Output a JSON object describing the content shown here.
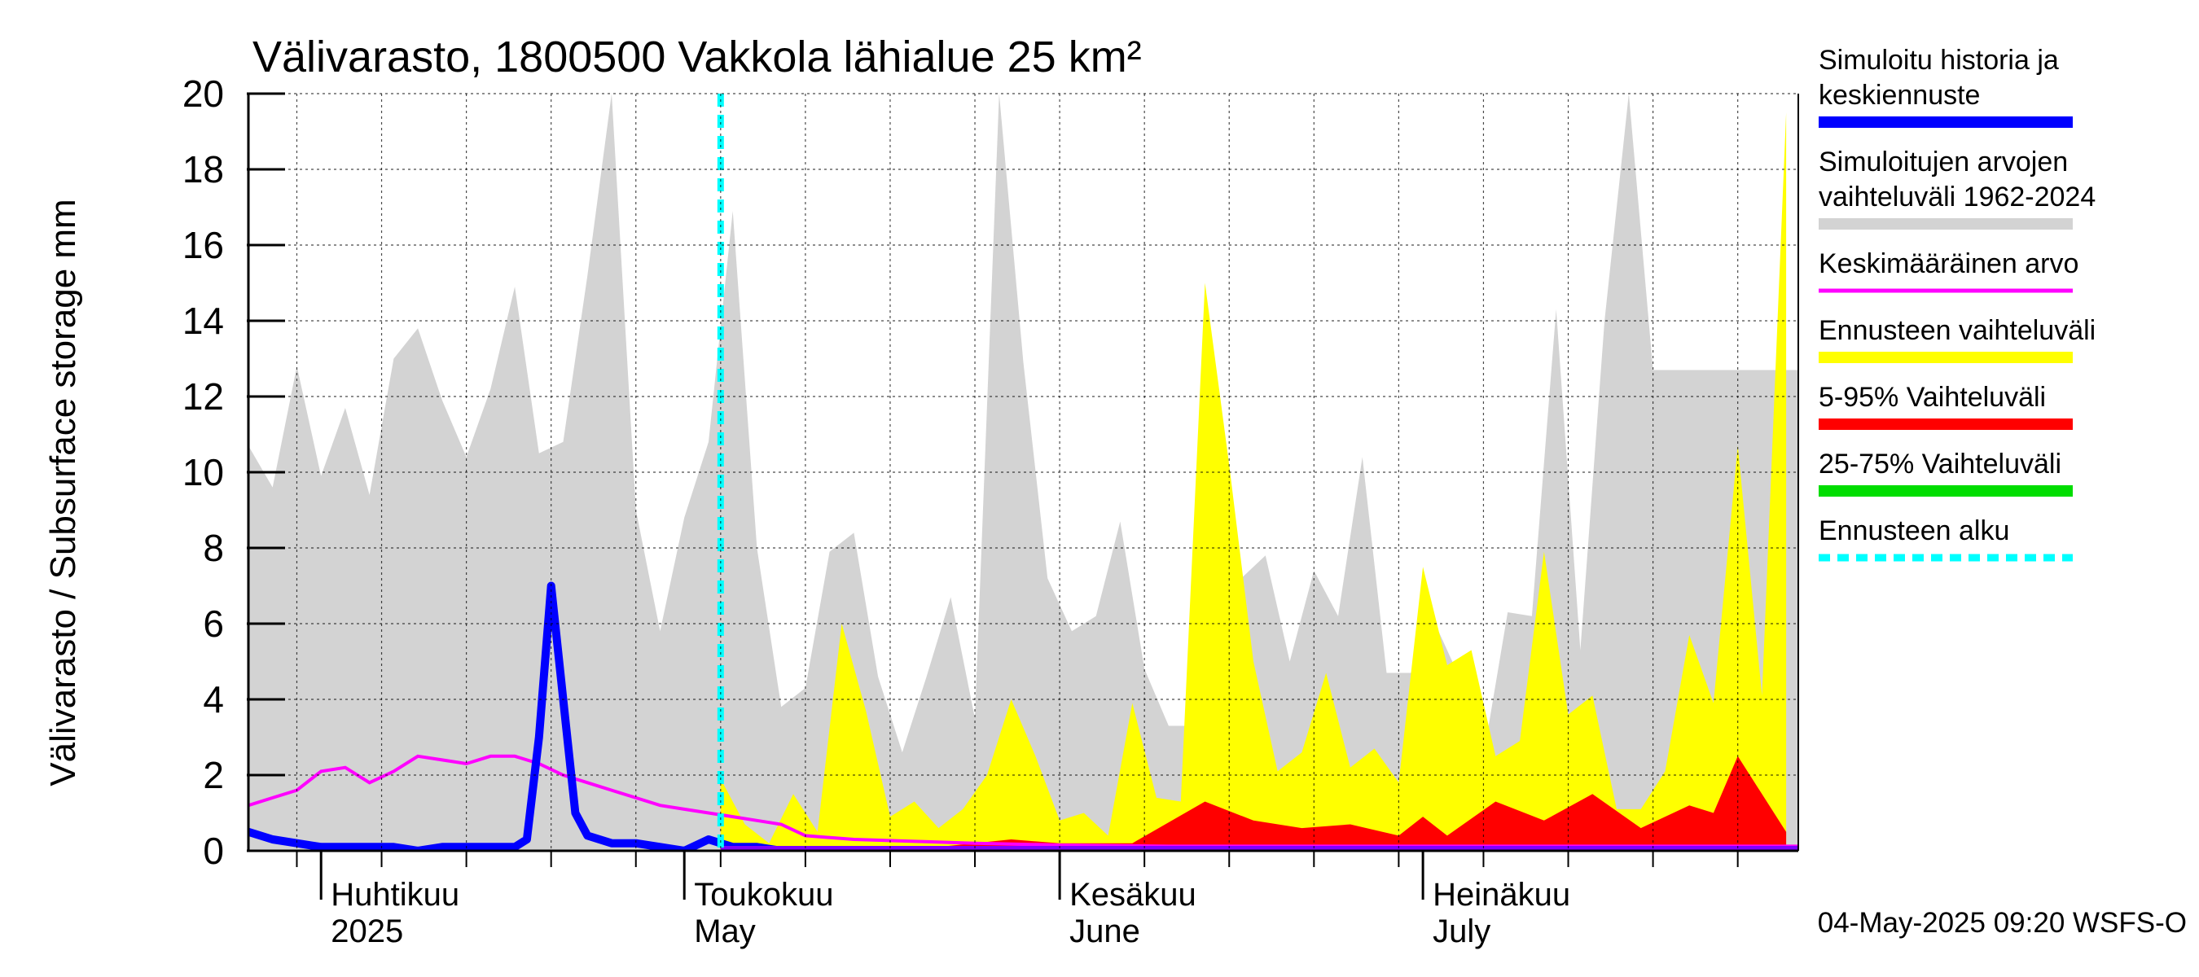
{
  "chart_data": {
    "type": "area",
    "title": "Välivarasto, 1800500 Vakkola lähialue 25 km²",
    "ylabel": "Välivarasto / Subsurface storage  mm",
    "ylim": [
      0,
      20
    ],
    "yticks": [
      "0",
      "2",
      "4",
      "6",
      "8",
      "10",
      "12",
      "14",
      "16",
      "18",
      "20"
    ],
    "x_range": [
      "2025-03-26",
      "2025-08-01"
    ],
    "month_labels": [
      {
        "date": "2025-04-01",
        "fi": "Huhtikuu",
        "en": "2025"
      },
      {
        "date": "2025-05-01",
        "fi": "Toukokuu",
        "en": "May"
      },
      {
        "date": "2025-06-01",
        "fi": "Kesäkuu",
        "en": "June"
      },
      {
        "date": "2025-07-01",
        "fi": "Heinäkuu",
        "en": "July"
      }
    ],
    "grid": true,
    "legend_position": "right",
    "forecast_start": "2025-05-04",
    "footer": "04-May-2025 09:20 WSFS-O",
    "colors": {
      "history": "#0000ff",
      "range": "#d3d3d3",
      "mean": "#ff00ff",
      "forecast_range": "#ffff00",
      "p5_95": "#ff0000",
      "p25_75": "#00dd00",
      "forecast_start": "#00ffff"
    },
    "legend": [
      {
        "lines": [
          "Simuloitu historia ja",
          "keskiennuste"
        ],
        "color": "#0000ff",
        "style": "solid"
      },
      {
        "lines": [
          "Simuloitujen arvojen",
          "vaihteluväli 1962-2024"
        ],
        "color": "#d3d3d3",
        "style": "solid"
      },
      {
        "lines": [
          "Keskimääräinen arvo"
        ],
        "color": "#ff00ff",
        "style": "thin"
      },
      {
        "lines": [
          "Ennusteen vaihteluväli"
        ],
        "color": "#ffff00",
        "style": "solid"
      },
      {
        "lines": [
          "5-95% Vaihteluväli"
        ],
        "color": "#ff0000",
        "style": "solid"
      },
      {
        "lines": [
          "25-75% Vaihteluväli"
        ],
        "color": "#00dd00",
        "style": "solid"
      },
      {
        "lines": [
          "Ennusteen alku"
        ],
        "color": "#00ffff",
        "style": "dashed"
      }
    ],
    "series": [
      {
        "name": "Simuloitujen arvojen vaihteluväli 1962-2024",
        "kind": "band-upper",
        "x": [
          "2025-03-26",
          "2025-03-28",
          "2025-03-30",
          "2025-04-01",
          "2025-04-03",
          "2025-04-05",
          "2025-04-07",
          "2025-04-09",
          "2025-04-11",
          "2025-04-13",
          "2025-04-15",
          "2025-04-17",
          "2025-04-19",
          "2025-04-21",
          "2025-04-23",
          "2025-04-25",
          "2025-04-27",
          "2025-04-29",
          "2025-05-01",
          "2025-05-03",
          "2025-05-05",
          "2025-05-07",
          "2025-05-09",
          "2025-05-11",
          "2025-05-13",
          "2025-05-15",
          "2025-05-17",
          "2025-05-19",
          "2025-05-21",
          "2025-05-23",
          "2025-05-25",
          "2025-05-27",
          "2025-05-29",
          "2025-05-31",
          "2025-06-02",
          "2025-06-04",
          "2025-06-06",
          "2025-06-08",
          "2025-06-10",
          "2025-06-12",
          "2025-06-14",
          "2025-06-16",
          "2025-06-18",
          "2025-06-20",
          "2025-06-22",
          "2025-06-24",
          "2025-06-26",
          "2025-06-28",
          "2025-06-30",
          "2025-07-02",
          "2025-07-04",
          "2025-07-06",
          "2025-07-08",
          "2025-07-10",
          "2025-07-12",
          "2025-07-14",
          "2025-07-16",
          "2025-07-18",
          "2025-07-20",
          "2025-07-22",
          "2025-07-24",
          "2025-07-26",
          "2025-07-28",
          "2025-07-30",
          "2025-08-01"
        ],
        "values": [
          10.7,
          9.6,
          12.8,
          9.9,
          11.7,
          9.4,
          13.0,
          13.8,
          11.9,
          10.4,
          12.2,
          14.9,
          10.5,
          10.8,
          15.2,
          20.0,
          9.0,
          5.8,
          8.8,
          10.8,
          16.9,
          8.0,
          3.8,
          4.3,
          7.9,
          8.4,
          4.6,
          2.6,
          4.6,
          6.7,
          3.5,
          20.0,
          12.9,
          7.2,
          5.8,
          6.2,
          8.7,
          4.8,
          3.3,
          3.3,
          10.4,
          7.2,
          7.8,
          5.0,
          7.4,
          6.2,
          10.4,
          4.7,
          4.7,
          6.0,
          4.6,
          2.5,
          6.3,
          6.2,
          14.3,
          5.3,
          14.0,
          20.0,
          12.7,
          12.7,
          12.7,
          12.7,
          12.7,
          12.7,
          12.7
        ]
      },
      {
        "name": "Ennusteen vaihteluväli",
        "kind": "band-upper",
        "x": [
          "2025-05-04",
          "2025-05-06",
          "2025-05-08",
          "2025-05-10",
          "2025-05-12",
          "2025-05-14",
          "2025-05-16",
          "2025-05-18",
          "2025-05-20",
          "2025-05-22",
          "2025-05-24",
          "2025-05-26",
          "2025-05-28",
          "2025-05-30",
          "2025-06-01",
          "2025-06-03",
          "2025-06-05",
          "2025-06-07",
          "2025-06-09",
          "2025-06-11",
          "2025-06-13",
          "2025-06-15",
          "2025-06-17",
          "2025-06-19",
          "2025-06-21",
          "2025-06-23",
          "2025-06-25",
          "2025-06-27",
          "2025-06-29",
          "2025-07-01",
          "2025-07-03",
          "2025-07-05",
          "2025-07-07",
          "2025-07-09",
          "2025-07-11",
          "2025-07-13",
          "2025-07-15",
          "2025-07-17",
          "2025-07-19",
          "2025-07-21",
          "2025-07-23",
          "2025-07-25",
          "2025-07-27",
          "2025-07-29",
          "2025-07-31"
        ],
        "values": [
          1.9,
          0.7,
          0.2,
          1.5,
          0.5,
          6.0,
          3.7,
          0.9,
          1.3,
          0.6,
          1.1,
          2.0,
          4.0,
          2.5,
          0.8,
          1.0,
          0.4,
          3.9,
          1.4,
          1.3,
          15.0,
          10.2,
          5.0,
          2.1,
          2.6,
          4.7,
          2.2,
          2.7,
          1.8,
          7.5,
          4.9,
          5.3,
          2.5,
          2.9,
          7.9,
          3.6,
          4.1,
          1.1,
          1.1,
          2.1,
          5.7,
          3.9,
          10.7,
          4.1,
          19.5
        ]
      },
      {
        "name": "5-95% Vaihteluväli",
        "kind": "band-upper",
        "x": [
          "2025-05-04",
          "2025-05-10",
          "2025-05-16",
          "2025-05-22",
          "2025-05-28",
          "2025-06-01",
          "2025-06-07",
          "2025-06-13",
          "2025-06-17",
          "2025-06-21",
          "2025-06-25",
          "2025-06-29",
          "2025-07-01",
          "2025-07-03",
          "2025-07-07",
          "2025-07-11",
          "2025-07-15",
          "2025-07-19",
          "2025-07-23",
          "2025-07-25",
          "2025-07-27",
          "2025-07-29",
          "2025-07-31"
        ],
        "values": [
          0.1,
          0.05,
          0.1,
          0.1,
          0.3,
          0.2,
          0.2,
          1.3,
          0.8,
          0.6,
          0.7,
          0.4,
          0.9,
          0.4,
          1.3,
          0.8,
          1.5,
          0.6,
          1.2,
          1.0,
          2.5,
          1.5,
          0.5
        ]
      },
      {
        "name": "Keskimääräinen arvo",
        "kind": "line",
        "x": [
          "2025-03-26",
          "2025-03-28",
          "2025-03-30",
          "2025-04-01",
          "2025-04-03",
          "2025-04-05",
          "2025-04-07",
          "2025-04-09",
          "2025-04-11",
          "2025-04-13",
          "2025-04-15",
          "2025-04-17",
          "2025-04-19",
          "2025-04-21",
          "2025-04-23",
          "2025-04-25",
          "2025-04-27",
          "2025-04-29",
          "2025-05-01",
          "2025-05-03",
          "2025-05-05",
          "2025-05-07",
          "2025-05-09",
          "2025-05-11",
          "2025-05-15",
          "2025-05-20",
          "2025-05-25",
          "2025-06-01",
          "2025-06-10",
          "2025-06-20",
          "2025-07-01",
          "2025-07-10",
          "2025-07-20",
          "2025-08-01"
        ],
        "values": [
          1.2,
          1.4,
          1.6,
          2.1,
          2.2,
          1.8,
          2.1,
          2.5,
          2.4,
          2.3,
          2.5,
          2.5,
          2.3,
          2.0,
          1.8,
          1.6,
          1.4,
          1.2,
          1.1,
          1.0,
          0.9,
          0.8,
          0.7,
          0.4,
          0.3,
          0.25,
          0.2,
          0.15,
          0.12,
          0.12,
          0.12,
          0.12,
          0.12,
          0.12
        ]
      },
      {
        "name": "Simuloitu historia ja keskiennuste",
        "kind": "line",
        "x": [
          "2025-03-26",
          "2025-03-28",
          "2025-03-30",
          "2025-04-01",
          "2025-04-03",
          "2025-04-05",
          "2025-04-07",
          "2025-04-09",
          "2025-04-11",
          "2025-04-13",
          "2025-04-15",
          "2025-04-17",
          "2025-04-18",
          "2025-04-19",
          "2025-04-20",
          "2025-04-21",
          "2025-04-22",
          "2025-04-23",
          "2025-04-25",
          "2025-04-27",
          "2025-04-29",
          "2025-05-01",
          "2025-05-03",
          "2025-05-05",
          "2025-05-07",
          "2025-05-09",
          "2025-05-11",
          "2025-05-13",
          "2025-05-16",
          "2025-05-20",
          "2025-05-25",
          "2025-06-01",
          "2025-06-15",
          "2025-07-01",
          "2025-07-15",
          "2025-08-01"
        ],
        "values": [
          0.5,
          0.3,
          0.2,
          0.1,
          0.1,
          0.1,
          0.1,
          0.0,
          0.1,
          0.1,
          0.1,
          0.1,
          0.3,
          3.0,
          7.0,
          4.0,
          1.0,
          0.4,
          0.2,
          0.2,
          0.1,
          0.0,
          0.3,
          0.1,
          0.1,
          0.0,
          0.0,
          0.0,
          0.0,
          0.0,
          0.0,
          0.0,
          0.0,
          0.0,
          0.0,
          0.0
        ]
      }
    ]
  }
}
